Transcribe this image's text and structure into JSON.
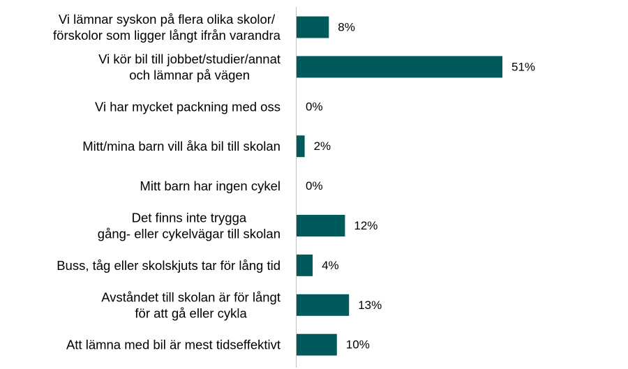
{
  "chart_data": {
    "type": "bar",
    "orientation": "horizontal",
    "bar_color": "#005a5c",
    "axis_color": "#bfbfbf",
    "categories": [
      [
        "Vi lämnar syskon på flera olika skolor/",
        "förskolor som ligger långt ifrån varandra"
      ],
      [
        "Vi kör bil till jobbet/studier/annat",
        "och lämnar på vägen"
      ],
      [
        "Vi har mycket packning med oss"
      ],
      [
        "Mitt/mina barn vill åka bil till skolan"
      ],
      [
        "Mitt barn har ingen cykel"
      ],
      [
        "Det finns inte trygga",
        "gång- eller cykelvägar till skolan"
      ],
      [
        "Buss, tåg eller skolskjuts tar för lång tid"
      ],
      [
        "Avståndet till skolan är för långt",
        "för att gå eller cykla"
      ],
      [
        "Att lämna med bil är mest tidseffektivt"
      ]
    ],
    "values": [
      8,
      51,
      0,
      2,
      0,
      12,
      4,
      13,
      10
    ],
    "value_labels": [
      "8%",
      "51%",
      "0%",
      "2%",
      "0%",
      "12%",
      "4%",
      "13%",
      "10%"
    ],
    "xlim": [
      0,
      51
    ],
    "grid": false,
    "legend": false
  }
}
